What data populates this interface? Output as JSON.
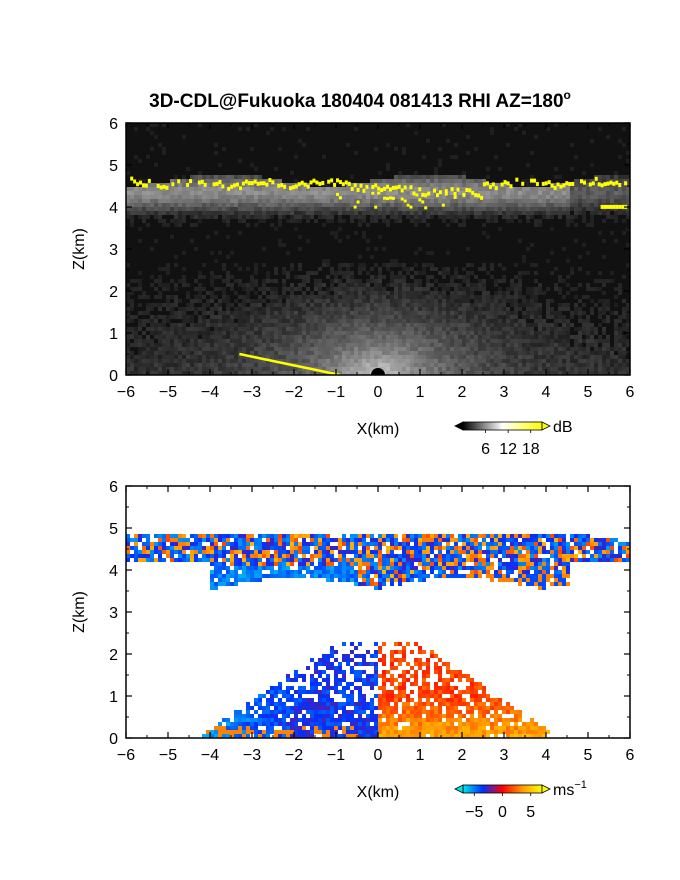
{
  "title": "3D-CDL@Fukuoka 180404 081413 RHI AZ=180",
  "title_superscript": "o",
  "chart_data": [
    {
      "type": "heatmap",
      "name": "backscatter",
      "xlabel": "X(km)",
      "ylabel": "Z(km)",
      "xlim": [
        -6,
        6
      ],
      "ylim": [
        0,
        6
      ],
      "xticks": [
        -6,
        -5,
        -4,
        -3,
        -2,
        -1,
        0,
        1,
        2,
        3,
        4,
        5,
        6
      ],
      "yticks": [
        0,
        1,
        2,
        3,
        4,
        5,
        6
      ],
      "background": "#111111",
      "colorbar": {
        "unit": "dB",
        "ticks": [
          "6",
          "12",
          "18"
        ],
        "range": [
          0,
          21
        ],
        "colors": [
          "#000000",
          "#ffffff",
          "#ffff00"
        ]
      },
      "features": {
        "cloud_layer_km": [
          3.5,
          4.8
        ],
        "cloud_base_yellow_km": [
          4.1,
          4.8
        ],
        "near_ground_layer_km": [
          0,
          1.5
        ],
        "ground_edge_x_km": [
          -3.3,
          -0.9
        ]
      }
    },
    {
      "type": "heatmap",
      "name": "doppler_velocity",
      "xlabel": "X(km)",
      "ylabel": "Z(km)",
      "xlim": [
        -6,
        6
      ],
      "ylim": [
        0,
        6
      ],
      "xticks": [
        -6,
        -5,
        -4,
        -3,
        -2,
        -1,
        0,
        1,
        2,
        3,
        4,
        5,
        6
      ],
      "yticks": [
        0,
        1,
        2,
        3,
        4,
        5,
        6
      ],
      "background": "#ffffff",
      "colorbar": {
        "unit": "ms",
        "unit_superscript": "−1",
        "ticks": [
          "−5",
          "0",
          "5"
        ],
        "range": [
          -7,
          7
        ],
        "colors": [
          "#00e5ee",
          "#0030ff",
          "#ff0000",
          "#ff9900",
          "#ffff00"
        ]
      },
      "features": {
        "cloud_layer_km": [
          3.5,
          4.9
        ],
        "boundary_layer_km": [
          0,
          2.3
        ],
        "negative_side_x_km": [
          -4.2,
          0
        ],
        "positive_side_x_km": [
          0,
          4.6
        ]
      }
    }
  ]
}
